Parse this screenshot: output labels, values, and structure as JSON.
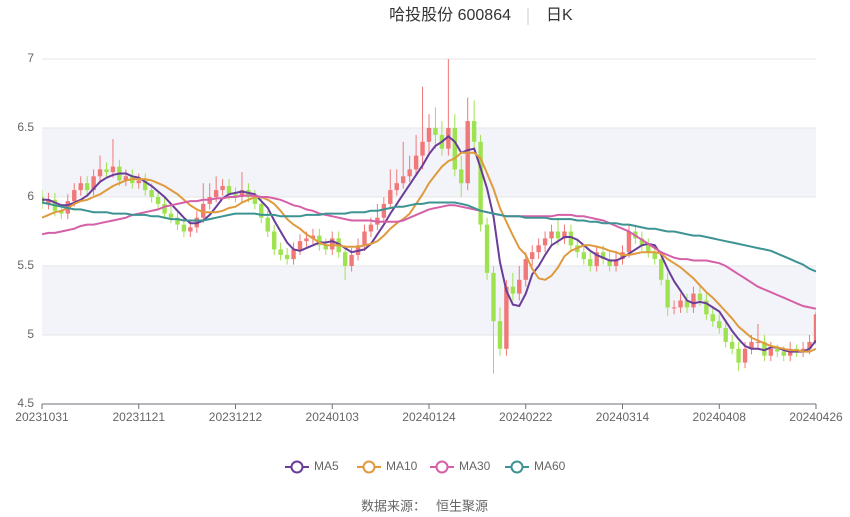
{
  "chart_data": {
    "type": "candlestick",
    "title": "哈投股份 600864",
    "subtitle": "日K",
    "source_label": "数据来源：",
    "source": "恒生聚源",
    "ylim": [
      4.5,
      7
    ],
    "yticks": [
      4.5,
      5,
      5.5,
      6,
      6.5,
      7
    ],
    "up_color": "#f07878",
    "down_color": "#9ee34f",
    "categories": [
      "20231031",
      null,
      null,
      null,
      null,
      null,
      null,
      null,
      null,
      null,
      null,
      null,
      null,
      null,
      null,
      "20231121",
      null,
      null,
      null,
      null,
      null,
      null,
      null,
      null,
      null,
      null,
      null,
      null,
      null,
      null,
      "20231212",
      null,
      null,
      null,
      null,
      null,
      null,
      null,
      null,
      null,
      null,
      null,
      null,
      null,
      null,
      "20240103",
      null,
      null,
      null,
      null,
      null,
      null,
      null,
      null,
      null,
      null,
      null,
      null,
      null,
      null,
      "20240124",
      null,
      null,
      null,
      null,
      null,
      null,
      null,
      null,
      null,
      null,
      null,
      null,
      null,
      null,
      "20240222",
      null,
      null,
      null,
      null,
      null,
      null,
      null,
      null,
      null,
      null,
      null,
      null,
      null,
      null,
      "20240314",
      null,
      null,
      null,
      null,
      null,
      null,
      null,
      null,
      null,
      null,
      null,
      null,
      null,
      null,
      "20240408",
      null,
      null,
      null,
      null,
      null,
      null,
      null,
      null,
      null,
      null,
      null,
      null,
      null,
      null,
      "20240426"
    ],
    "candles": {
      "open": [
        6.0,
        5.95,
        5.98,
        5.9,
        5.88,
        5.97,
        6.05,
        6.1,
        6.05,
        6.15,
        6.2,
        6.18,
        6.22,
        6.12,
        6.15,
        6.1,
        6.12,
        6.05,
        6.0,
        5.95,
        5.88,
        5.85,
        5.8,
        5.75,
        5.78,
        5.85,
        5.95,
        6.0,
        6.05,
        6.08,
        6.02,
        6.0,
        6.05,
        6.0,
        5.95,
        5.85,
        5.75,
        5.62,
        5.58,
        5.55,
        5.62,
        5.68,
        5.7,
        5.72,
        5.65,
        5.62,
        5.7,
        5.6,
        5.5,
        5.58,
        5.65,
        5.75,
        5.8,
        5.85,
        5.95,
        6.05,
        6.1,
        6.15,
        6.2,
        6.3,
        6.4,
        6.5,
        6.45,
        6.35,
        6.5,
        6.2,
        6.1,
        6.55,
        6.4,
        5.8,
        5.45,
        5.1,
        4.9,
        5.35,
        5.3,
        5.4,
        5.55,
        5.6,
        5.65,
        5.7,
        5.75,
        5.7,
        5.75,
        5.65,
        5.6,
        5.55,
        5.5,
        5.6,
        5.55,
        5.5,
        5.55,
        5.6,
        5.75,
        5.7,
        5.65,
        5.6,
        5.55,
        5.4,
        5.2,
        5.2,
        5.25,
        5.2,
        5.3,
        5.25,
        5.15,
        5.1,
        5.05,
        4.95,
        4.9,
        4.8,
        4.9,
        4.95,
        4.95,
        4.85,
        4.9,
        4.88,
        4.85,
        4.9,
        4.88,
        4.9,
        4.95
      ],
      "close": [
        5.95,
        5.98,
        5.9,
        5.88,
        5.97,
        6.05,
        6.1,
        6.05,
        6.15,
        6.2,
        6.18,
        6.22,
        6.12,
        6.15,
        6.1,
        6.12,
        6.05,
        6.0,
        5.95,
        5.88,
        5.85,
        5.8,
        5.75,
        5.78,
        5.85,
        5.95,
        6.0,
        6.05,
        6.08,
        6.02,
        6.0,
        6.05,
        6.0,
        5.95,
        5.85,
        5.75,
        5.62,
        5.58,
        5.55,
        5.62,
        5.68,
        5.7,
        5.72,
        5.65,
        5.62,
        5.7,
        5.6,
        5.5,
        5.58,
        5.65,
        5.75,
        5.8,
        5.85,
        5.95,
        6.05,
        6.1,
        6.15,
        6.2,
        6.3,
        6.4,
        6.5,
        6.45,
        6.35,
        6.5,
        6.2,
        6.1,
        6.55,
        6.4,
        5.8,
        5.45,
        5.1,
        4.9,
        5.35,
        5.3,
        5.4,
        5.55,
        5.6,
        5.65,
        5.7,
        5.75,
        5.7,
        5.75,
        5.65,
        5.6,
        5.55,
        5.5,
        5.6,
        5.55,
        5.5,
        5.55,
        5.6,
        5.75,
        5.7,
        5.65,
        5.6,
        5.55,
        5.4,
        5.2,
        5.2,
        5.25,
        5.2,
        5.3,
        5.25,
        5.15,
        5.1,
        5.05,
        4.95,
        4.9,
        4.8,
        4.9,
        4.95,
        4.95,
        4.85,
        4.9,
        4.88,
        4.85,
        4.9,
        4.88,
        4.9,
        4.95,
        5.15
      ],
      "low": [
        5.91,
        5.91,
        5.86,
        5.84,
        5.84,
        5.93,
        6.01,
        6.01,
        6.01,
        6.11,
        6.14,
        6.14,
        6.08,
        6.08,
        6.06,
        6.06,
        6.01,
        5.96,
        5.91,
        5.84,
        5.81,
        5.76,
        5.71,
        5.71,
        5.74,
        5.81,
        5.91,
        5.96,
        6.01,
        5.98,
        5.96,
        5.96,
        5.96,
        5.91,
        5.81,
        5.71,
        5.58,
        5.54,
        5.51,
        5.51,
        5.58,
        5.64,
        5.66,
        5.61,
        5.58,
        5.58,
        5.56,
        5.4,
        5.46,
        5.54,
        5.61,
        5.71,
        5.76,
        5.81,
        5.91,
        6.01,
        6.06,
        6.11,
        6.16,
        6.2,
        6.3,
        6.35,
        6.3,
        6.3,
        6.15,
        6.0,
        6.05,
        6.35,
        5.75,
        5.4,
        4.72,
        4.85,
        4.85,
        5.25,
        5.25,
        5.35,
        5.5,
        5.55,
        5.6,
        5.65,
        5.65,
        5.66,
        5.61,
        5.56,
        5.51,
        5.46,
        5.46,
        5.51,
        5.46,
        5.46,
        5.51,
        5.56,
        5.66,
        5.61,
        5.56,
        5.51,
        5.36,
        5.14,
        5.15,
        5.16,
        5.16,
        5.16,
        5.21,
        5.11,
        5.06,
        5.01,
        4.91,
        4.86,
        4.74,
        4.76,
        4.86,
        4.9,
        4.81,
        4.81,
        4.84,
        4.81,
        4.81,
        4.84,
        4.84,
        4.86,
        4.93
      ],
      "high": [
        6.05,
        6.03,
        6.03,
        5.95,
        6.02,
        6.1,
        6.15,
        6.15,
        6.2,
        6.3,
        6.25,
        6.42,
        6.27,
        6.2,
        6.2,
        6.17,
        6.17,
        6.1,
        6.05,
        6.0,
        5.93,
        5.9,
        5.85,
        5.83,
        5.9,
        6.1,
        6.1,
        6.15,
        6.13,
        6.13,
        6.07,
        6.18,
        6.1,
        6.05,
        6.0,
        5.9,
        5.8,
        5.67,
        5.63,
        5.67,
        5.73,
        5.75,
        5.77,
        5.77,
        5.7,
        5.75,
        5.75,
        5.65,
        5.63,
        5.7,
        5.8,
        5.85,
        5.95,
        6.0,
        6.2,
        6.2,
        6.4,
        6.3,
        6.45,
        6.8,
        6.6,
        6.65,
        6.55,
        7.0,
        6.6,
        6.3,
        6.72,
        6.7,
        6.45,
        5.85,
        5.5,
        5.2,
        5.4,
        5.45,
        5.5,
        5.6,
        5.65,
        5.7,
        5.75,
        5.8,
        5.85,
        5.8,
        5.8,
        5.7,
        5.65,
        5.6,
        5.65,
        5.65,
        5.6,
        5.6,
        5.65,
        5.8,
        5.8,
        5.75,
        5.7,
        5.65,
        5.6,
        5.45,
        5.25,
        5.3,
        5.3,
        5.35,
        5.35,
        5.3,
        5.2,
        5.15,
        5.1,
        5.0,
        4.95,
        4.95,
        5.0,
        5.08,
        5.0,
        4.95,
        4.93,
        4.92,
        4.95,
        4.93,
        4.95,
        5.0,
        5.17
      ]
    },
    "series": [
      {
        "name": "MA5",
        "color": "#6a3d9a",
        "values": [
          5.98,
          5.98,
          5.96,
          5.94,
          5.94,
          5.96,
          5.98,
          6.01,
          6.06,
          6.11,
          6.14,
          6.16,
          6.17,
          6.17,
          6.15,
          6.14,
          6.11,
          6.08,
          6.04,
          6.0,
          5.95,
          5.9,
          5.85,
          5.81,
          5.81,
          5.83,
          5.87,
          5.93,
          5.99,
          6.02,
          6.03,
          6.04,
          6.03,
          6.02,
          5.97,
          5.92,
          5.83,
          5.75,
          5.67,
          5.62,
          5.61,
          5.63,
          5.65,
          5.67,
          5.67,
          5.68,
          5.66,
          5.63,
          5.6,
          5.61,
          5.62,
          5.66,
          5.73,
          5.8,
          5.88,
          5.95,
          6.02,
          6.09,
          6.16,
          6.23,
          6.31,
          6.37,
          6.4,
          6.44,
          6.4,
          6.32,
          6.34,
          6.35,
          6.21,
          6.06,
          5.86,
          5.53,
          5.32,
          5.22,
          5.21,
          5.3,
          5.44,
          5.5,
          5.58,
          5.65,
          5.68,
          5.71,
          5.71,
          5.69,
          5.65,
          5.61,
          5.58,
          5.56,
          5.54,
          5.54,
          5.56,
          5.59,
          5.62,
          5.65,
          5.66,
          5.65,
          5.58,
          5.48,
          5.39,
          5.32,
          5.25,
          5.23,
          5.24,
          5.23,
          5.2,
          5.17,
          5.1,
          5.03,
          4.97,
          4.92,
          4.9,
          4.9,
          4.89,
          4.91,
          4.91,
          4.89,
          4.88,
          4.88,
          4.88,
          4.9,
          4.96
        ]
      },
      {
        "name": "MA10",
        "color": "#e09a3e",
        "values": [
          5.85,
          5.87,
          5.89,
          5.9,
          5.92,
          5.95,
          5.97,
          5.98,
          6.0,
          6.02,
          6.05,
          6.08,
          6.1,
          6.12,
          6.13,
          6.13,
          6.13,
          6.12,
          6.1,
          6.08,
          6.05,
          6.02,
          5.98,
          5.94,
          5.91,
          5.89,
          5.89,
          5.89,
          5.9,
          5.92,
          5.93,
          5.96,
          5.98,
          6.0,
          6.0,
          5.98,
          5.95,
          5.9,
          5.84,
          5.8,
          5.77,
          5.73,
          5.7,
          5.67,
          5.65,
          5.65,
          5.65,
          5.64,
          5.64,
          5.64,
          5.65,
          5.66,
          5.68,
          5.72,
          5.77,
          5.81,
          5.84,
          5.88,
          5.95,
          6.02,
          6.1,
          6.16,
          6.22,
          6.26,
          6.28,
          6.32,
          6.32,
          6.32,
          6.28,
          6.17,
          6.06,
          5.92,
          5.82,
          5.72,
          5.63,
          5.58,
          5.48,
          5.41,
          5.4,
          5.43,
          5.49,
          5.57,
          5.61,
          5.63,
          5.65,
          5.65,
          5.64,
          5.63,
          5.61,
          5.6,
          5.58,
          5.58,
          5.59,
          5.6,
          5.6,
          5.6,
          5.59,
          5.55,
          5.52,
          5.49,
          5.45,
          5.41,
          5.36,
          5.31,
          5.27,
          5.22,
          5.17,
          5.12,
          5.06,
          5.02,
          4.98,
          4.96,
          4.94,
          4.92,
          4.91,
          4.9,
          4.89,
          4.89,
          4.88,
          4.88,
          4.9
        ]
      },
      {
        "name": "MA30",
        "color": "#d660a8",
        "values": [
          5.73,
          5.74,
          5.74,
          5.75,
          5.76,
          5.77,
          5.79,
          5.8,
          5.8,
          5.81,
          5.82,
          5.83,
          5.84,
          5.85,
          5.87,
          5.88,
          5.89,
          5.9,
          5.91,
          5.93,
          5.94,
          5.95,
          5.96,
          5.97,
          5.97,
          5.98,
          5.98,
          5.99,
          5.99,
          6.0,
          6.0,
          6.01,
          6.01,
          6.01,
          6.0,
          6.0,
          5.99,
          5.98,
          5.96,
          5.94,
          5.93,
          5.91,
          5.9,
          5.88,
          5.87,
          5.86,
          5.85,
          5.84,
          5.83,
          5.83,
          5.83,
          5.83,
          5.82,
          5.82,
          5.82,
          5.82,
          5.83,
          5.85,
          5.87,
          5.89,
          5.91,
          5.92,
          5.93,
          5.94,
          5.94,
          5.93,
          5.92,
          5.91,
          5.9,
          5.89,
          5.88,
          5.87,
          5.86,
          5.86,
          5.86,
          5.86,
          5.86,
          5.86,
          5.86,
          5.86,
          5.87,
          5.87,
          5.87,
          5.86,
          5.86,
          5.85,
          5.84,
          5.83,
          5.81,
          5.79,
          5.77,
          5.75,
          5.72,
          5.69,
          5.66,
          5.63,
          5.6,
          5.58,
          5.56,
          5.55,
          5.55,
          5.54,
          5.54,
          5.54,
          5.53,
          5.52,
          5.5,
          5.47,
          5.44,
          5.41,
          5.38,
          5.35,
          5.33,
          5.31,
          5.29,
          5.27,
          5.25,
          5.23,
          5.21,
          5.2,
          5.19
        ]
      },
      {
        "name": "MA60",
        "color": "#3d9393",
        "values": [
          5.96,
          5.95,
          5.94,
          5.93,
          5.92,
          5.91,
          5.91,
          5.9,
          5.89,
          5.89,
          5.89,
          5.88,
          5.88,
          5.88,
          5.87,
          5.87,
          5.87,
          5.86,
          5.86,
          5.85,
          5.84,
          5.84,
          5.83,
          5.83,
          5.83,
          5.83,
          5.84,
          5.85,
          5.86,
          5.87,
          5.88,
          5.88,
          5.88,
          5.88,
          5.87,
          5.87,
          5.87,
          5.86,
          5.86,
          5.86,
          5.86,
          5.87,
          5.87,
          5.87,
          5.88,
          5.88,
          5.88,
          5.88,
          5.89,
          5.89,
          5.89,
          5.9,
          5.9,
          5.91,
          5.92,
          5.93,
          5.93,
          5.94,
          5.95,
          5.95,
          5.96,
          5.96,
          5.96,
          5.96,
          5.96,
          5.95,
          5.94,
          5.92,
          5.9,
          5.89,
          5.88,
          5.87,
          5.86,
          5.86,
          5.86,
          5.85,
          5.85,
          5.85,
          5.85,
          5.84,
          5.84,
          5.84,
          5.84,
          5.83,
          5.83,
          5.82,
          5.82,
          5.81,
          5.81,
          5.81,
          5.8,
          5.8,
          5.79,
          5.78,
          5.77,
          5.77,
          5.76,
          5.75,
          5.75,
          5.74,
          5.73,
          5.72,
          5.72,
          5.71,
          5.7,
          5.69,
          5.68,
          5.67,
          5.66,
          5.65,
          5.64,
          5.63,
          5.62,
          5.61,
          5.59,
          5.57,
          5.55,
          5.53,
          5.51,
          5.48,
          5.46
        ]
      }
    ]
  }
}
